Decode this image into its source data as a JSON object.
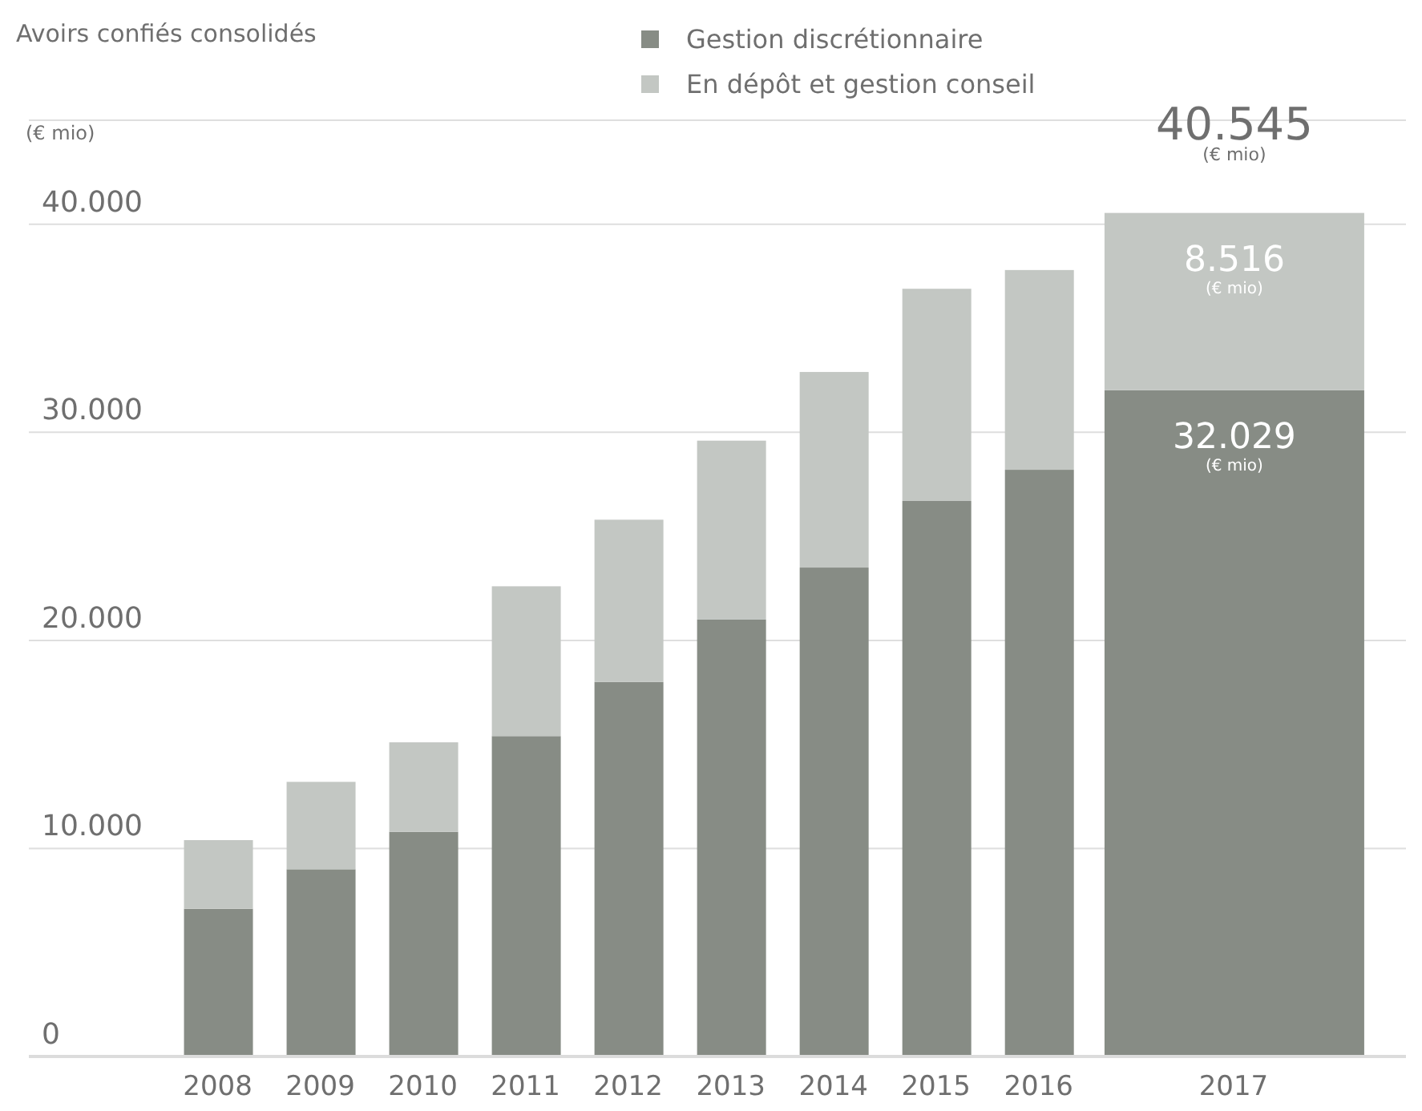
{
  "chart_data": {
    "type": "bar",
    "title": "Avoirs confiés consolidés",
    "ylabel": "(€ mio)",
    "categories": [
      "2008",
      "2009",
      "2010",
      "2011",
      "2012",
      "2013",
      "2014",
      "2015",
      "2016",
      "2017"
    ],
    "series": [
      {
        "name": "Gestion discrétionnaire",
        "color": "#878c85",
        "values": [
          7100,
          9000,
          10800,
          15400,
          18000,
          21000,
          23500,
          26700,
          28200,
          32029
        ],
        "value_labels": [
          null,
          null,
          null,
          null,
          null,
          null,
          null,
          null,
          null,
          "32.029"
        ]
      },
      {
        "name": "En dépôt et gestion conseil",
        "color": "#c3c7c3",
        "values": [
          3300,
          4200,
          4300,
          7200,
          7800,
          8600,
          9400,
          10200,
          9600,
          8516
        ],
        "value_labels": [
          null,
          null,
          null,
          null,
          null,
          null,
          null,
          null,
          null,
          "8.516"
        ]
      }
    ],
    "stacked": true,
    "totals": [
      null,
      null,
      null,
      null,
      null,
      null,
      null,
      null,
      null,
      "40.545"
    ],
    "ylim": [
      0,
      45000
    ],
    "yticks": [
      {
        "value": 0,
        "label": "0"
      },
      {
        "value": 10000,
        "label": "10.000"
      },
      {
        "value": 20000,
        "label": "20.000"
      },
      {
        "value": 30000,
        "label": "30.000"
      },
      {
        "value": 40000,
        "label": "40.000"
      }
    ],
    "grid": "y",
    "legend": "top",
    "annotations": [
      "(€ mio)",
      "(€ mio)",
      "(€ mio)"
    ]
  }
}
